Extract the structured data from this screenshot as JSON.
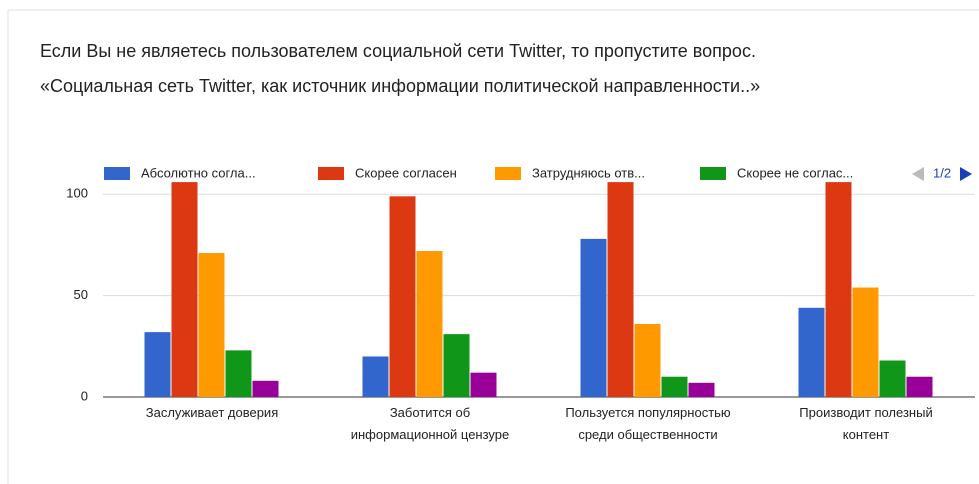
{
  "chart_data": {
    "type": "bar",
    "title": "Если Вы не являетесь пользователем социальной сети Twitter, то пропустите вопрос.",
    "subtitle": "«Социальная сеть Twitter, как источник информации политической направленности..»",
    "categories": [
      "Заслуживает доверия",
      "Заботится об\nинформационной цензуре",
      "Пользуется популярностью\nсреди общественности",
      "Производит полезный\nконтент"
    ],
    "series": [
      {
        "name": "Абсолютно согла...",
        "color": "#3366cc",
        "values": [
          32,
          20,
          78,
          44
        ]
      },
      {
        "name": "Скорее согласен",
        "color": "#dc3912",
        "values": [
          106,
          99,
          106,
          106
        ]
      },
      {
        "name": "Затрудняюсь отв...",
        "color": "#ff9900",
        "values": [
          71,
          72,
          36,
          54
        ]
      },
      {
        "name": "Скорее не соглас...",
        "color": "#109618",
        "values": [
          23,
          31,
          10,
          18
        ]
      },
      {
        "color": "#990099",
        "values": [
          8,
          12,
          7,
          10
        ]
      }
    ],
    "legend_page": "1/2",
    "ylim": [
      0,
      110
    ],
    "yticks": [
      0,
      50,
      100
    ],
    "grid": true
  }
}
